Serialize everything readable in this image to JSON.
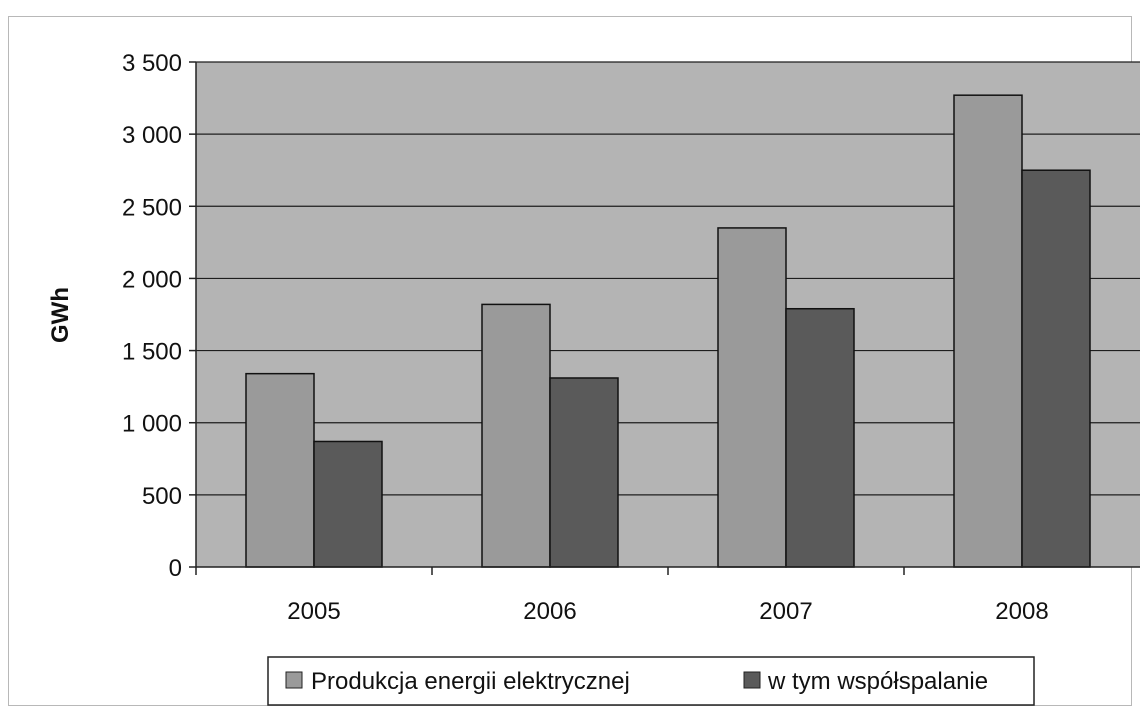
{
  "chart_data": {
    "type": "bar",
    "title": "",
    "xlabel": "",
    "ylabel": "GWh",
    "categories": [
      "2005",
      "2006",
      "2007",
      "2008"
    ],
    "series": [
      {
        "name": "Produkcja energii elektrycznej",
        "values": [
          1340,
          1820,
          2350,
          3270
        ],
        "color": "#9a9a9a"
      },
      {
        "name": "w tym współspalanie",
        "values": [
          870,
          1310,
          1790,
          2750
        ],
        "color": "#5a5a5a"
      }
    ],
    "ylim": [
      0,
      3500
    ],
    "yticks": [
      0,
      500,
      1000,
      1500,
      2000,
      2500,
      3000,
      3500
    ],
    "ytick_labels": [
      "0",
      "500",
      "1 000",
      "1 500",
      "2 000",
      "2 500",
      "3 000",
      "3 500"
    ],
    "grid": true,
    "plot_background": "#b4b4b4",
    "legend_position": "bottom"
  }
}
